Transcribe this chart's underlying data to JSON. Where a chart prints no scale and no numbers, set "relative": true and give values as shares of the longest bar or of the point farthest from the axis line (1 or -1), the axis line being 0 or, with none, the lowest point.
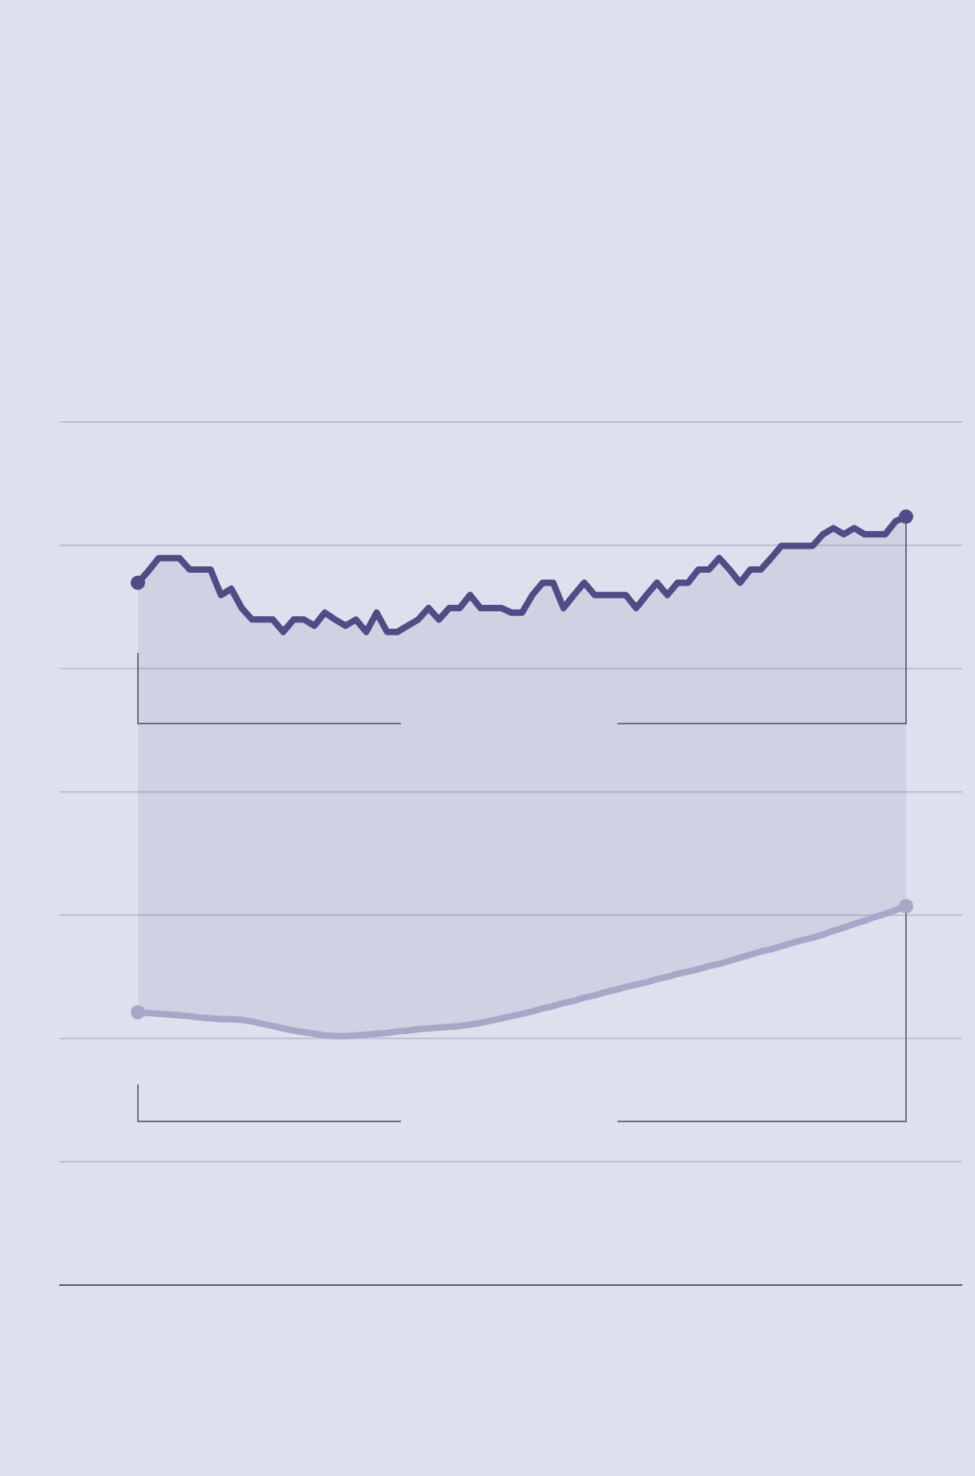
{
  "chart_data": {
    "type": "line",
    "relative": true,
    "grid": true,
    "line_style": "solid",
    "categories": [
      null,
      null,
      null,
      null,
      null,
      null,
      null,
      null,
      null,
      null,
      null,
      null,
      null,
      null,
      null,
      null,
      null,
      null,
      null,
      null,
      null,
      null,
      null,
      null,
      null,
      null,
      null,
      null,
      null,
      null,
      null,
      null,
      null,
      null,
      null,
      null,
      null,
      null,
      null,
      null,
      null,
      null,
      null,
      null,
      null,
      null,
      null,
      null,
      null,
      null,
      null,
      null,
      null,
      null,
      null,
      null,
      null,
      null,
      null,
      null,
      null,
      null,
      null,
      null,
      null,
      null,
      null,
      null,
      null,
      null,
      null,
      null,
      null,
      null,
      null
    ],
    "series": [
      {
        "color": "#4f4c86",
        "values": [
          0.914,
          0.929,
          0.946,
          0.946,
          0.946,
          0.931,
          0.931,
          0.931,
          0.898,
          0.906,
          0.881,
          0.866,
          0.866,
          0.866,
          0.85,
          0.866,
          0.866,
          0.858,
          0.875,
          0.866,
          0.858,
          0.866,
          0.85,
          0.875,
          0.85,
          0.85,
          0.858,
          0.866,
          0.881,
          0.866,
          0.881,
          0.881,
          0.898,
          0.881,
          0.881,
          0.881,
          0.875,
          0.875,
          0.898,
          0.914,
          0.914,
          0.881,
          0.898,
          0.914,
          0.898,
          0.898,
          0.898,
          0.898,
          0.881,
          0.898,
          0.914,
          0.898,
          0.914,
          0.914,
          0.931,
          0.931,
          0.946,
          0.931,
          0.914,
          0.931,
          0.931,
          0.946,
          0.962,
          0.962,
          0.962,
          0.962,
          0.977,
          0.985,
          0.977,
          0.985,
          0.977,
          0.977,
          0.977,
          0.994,
          1.0
        ],
        "lower": [
          0.355,
          0.354,
          0.353,
          0.352,
          0.351,
          0.35,
          0.348,
          0.347,
          0.346,
          0.346,
          0.345,
          0.343,
          0.34,
          0.337,
          0.334,
          0.331,
          0.329,
          0.327,
          0.325,
          0.324,
          0.324,
          0.325,
          0.326,
          0.327,
          0.328,
          0.33,
          0.331,
          0.333,
          0.334,
          0.335,
          0.336,
          0.337,
          0.339,
          0.341,
          0.344,
          0.347,
          0.35,
          0.353,
          0.356,
          0.36,
          0.363,
          0.367,
          0.37,
          0.374,
          0.377,
          0.381,
          0.384,
          0.388,
          0.391,
          0.394,
          0.398,
          0.401,
          0.405,
          0.408,
          0.411,
          0.415,
          0.418,
          0.422,
          0.426,
          0.43,
          0.434,
          0.437,
          0.441,
          0.445,
          0.449,
          0.452,
          0.456,
          0.461,
          0.465,
          0.47,
          0.474,
          0.479,
          0.483,
          0.488,
          0.493
        ],
        "upper": [
          0.914,
          0.929,
          0.946,
          0.946,
          0.946,
          0.931,
          0.931,
          0.931,
          0.898,
          0.906,
          0.881,
          0.866,
          0.866,
          0.866,
          0.85,
          0.866,
          0.866,
          0.858,
          0.875,
          0.866,
          0.858,
          0.866,
          0.85,
          0.875,
          0.85,
          0.85,
          0.858,
          0.866,
          0.881,
          0.866,
          0.881,
          0.881,
          0.898,
          0.881,
          0.881,
          0.881,
          0.875,
          0.875,
          0.898,
          0.914,
          0.914,
          0.881,
          0.898,
          0.914,
          0.898,
          0.898,
          0.898,
          0.898,
          0.881,
          0.898,
          0.914,
          0.898,
          0.914,
          0.914,
          0.931,
          0.931,
          0.946,
          0.931,
          0.914,
          0.931,
          0.931,
          0.946,
          0.962,
          0.962,
          0.962,
          0.962,
          0.977,
          0.985,
          0.977,
          0.985,
          0.977,
          0.977,
          0.977,
          0.994,
          1.0
        ]
      },
      {
        "color": "#a9a6c8",
        "values": [
          0.355,
          0.354,
          0.353,
          0.352,
          0.351,
          0.35,
          0.348,
          0.347,
          0.346,
          0.346,
          0.345,
          0.343,
          0.34,
          0.337,
          0.334,
          0.331,
          0.329,
          0.327,
          0.325,
          0.324,
          0.324,
          0.325,
          0.326,
          0.327,
          0.328,
          0.33,
          0.331,
          0.333,
          0.334,
          0.335,
          0.336,
          0.337,
          0.339,
          0.341,
          0.344,
          0.347,
          0.35,
          0.353,
          0.356,
          0.36,
          0.363,
          0.367,
          0.37,
          0.374,
          0.377,
          0.381,
          0.384,
          0.388,
          0.391,
          0.394,
          0.398,
          0.401,
          0.405,
          0.408,
          0.411,
          0.415,
          0.418,
          0.422,
          0.426,
          0.43,
          0.434,
          0.437,
          0.441,
          0.445,
          0.449,
          0.452,
          0.456,
          0.461,
          0.465,
          0.47,
          0.474,
          0.479,
          0.483,
          0.488,
          0.493
        ]
      }
    ]
  }
}
